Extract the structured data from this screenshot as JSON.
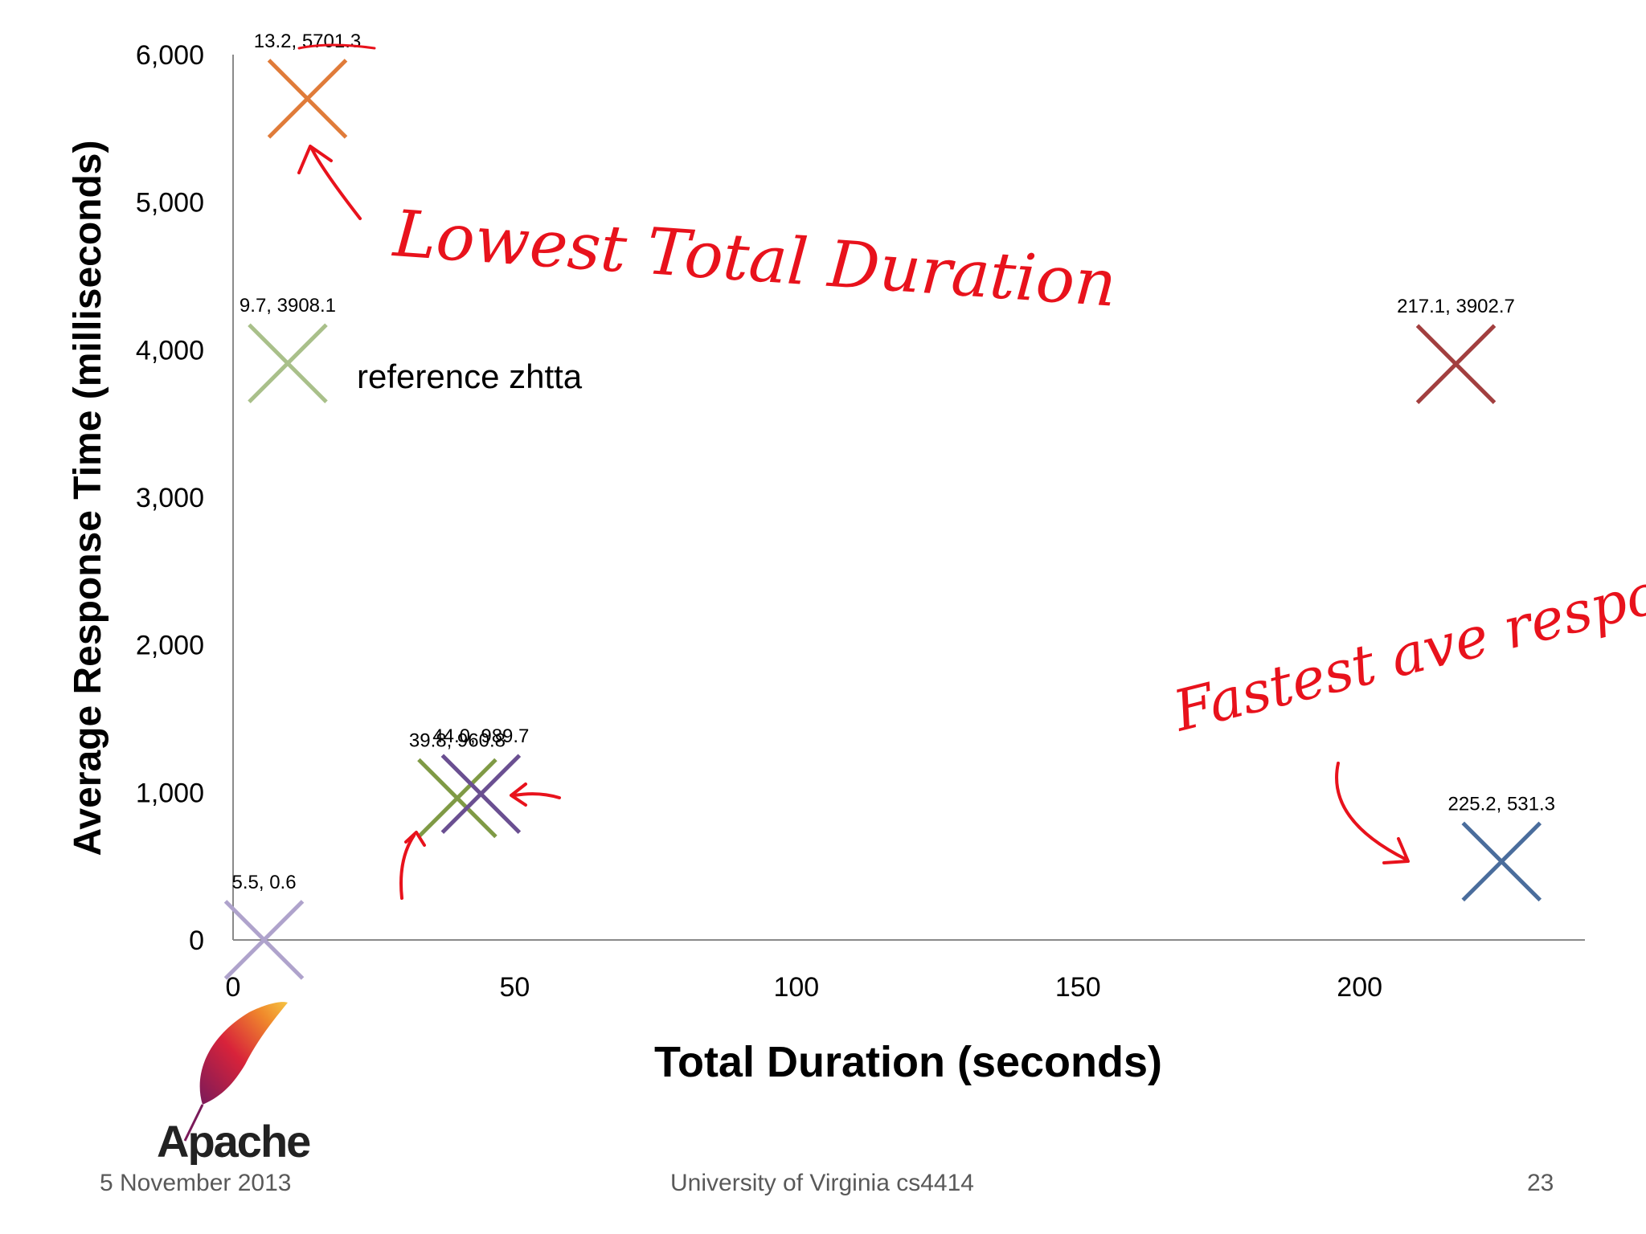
{
  "chart_data": {
    "type": "scatter",
    "xlabel": "Total Duration (seconds)",
    "ylabel": "Average Response Time (milliseconds)",
    "xlim": [
      0,
      240
    ],
    "ylim": [
      0,
      6000
    ],
    "x_ticks": [
      0,
      50,
      100,
      150,
      200
    ],
    "x_tick_labels": [
      "0",
      "50",
      "100",
      "150",
      "200"
    ],
    "y_ticks": [
      0,
      1000,
      2000,
      3000,
      4000,
      5000,
      6000
    ],
    "y_tick_labels": [
      "0",
      "1,000",
      "2,000",
      "3,000",
      "4,000",
      "5,000",
      "6,000"
    ],
    "grid": false,
    "marker": "x",
    "points": [
      {
        "x": 13.2,
        "y": 5701.3,
        "label": "13.2, 5701.3",
        "color": "#E07B39"
      },
      {
        "x": 9.7,
        "y": 3908.1,
        "label": "9.7, 3908.1",
        "color": "#A9C08A",
        "series_label": "reference zhtta"
      },
      {
        "x": 217.1,
        "y": 3902.7,
        "label": "217.1, 3902.7",
        "color": "#A23F3F"
      },
      {
        "x": 39.8,
        "y": 960.8,
        "label": "39.8, 960.8",
        "color": "#7F9A45"
      },
      {
        "x": 44.0,
        "y": 989.7,
        "label": "44.0, 989.7",
        "color": "#6A4F91"
      },
      {
        "x": 5.5,
        "y": 0.6,
        "label": "5.5, 0.6",
        "color": "#AFA3CC"
      },
      {
        "x": 225.2,
        "y": 531.3,
        "label": "225.2, 531.3",
        "color": "#4A6D9C"
      }
    ],
    "annotations": [
      "Lowest Total Duration",
      "Fastest ave response"
    ]
  },
  "logo": {
    "text": "Apache"
  },
  "footer": {
    "date": "5 November 2013",
    "course": "University of Virginia cs4414",
    "page": "23"
  },
  "annotation_color": "#E8121C"
}
